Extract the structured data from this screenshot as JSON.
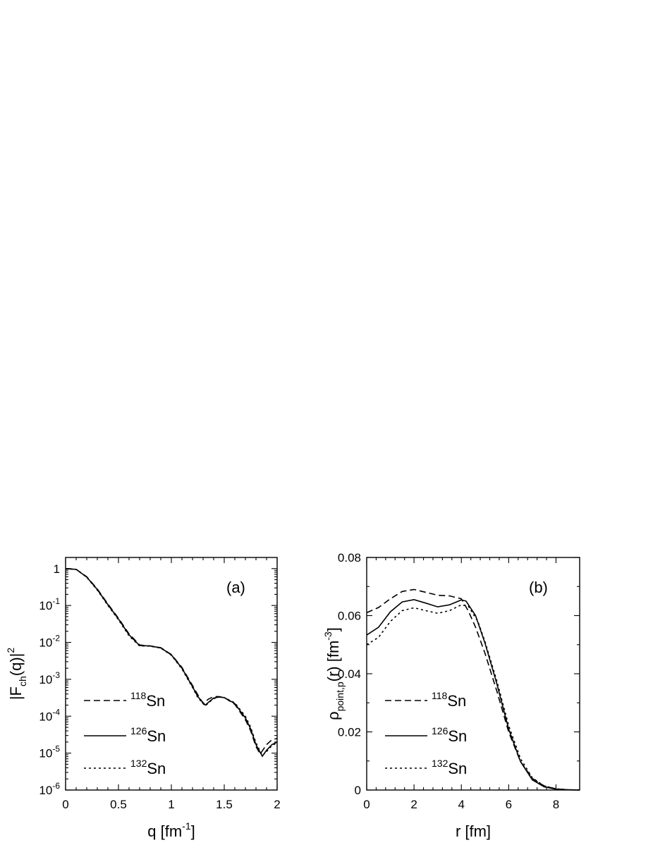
{
  "chart_data": [
    {
      "type": "line",
      "panel_label": "(a)",
      "xlabel": "q [fm",
      "xlabel_sup": "-1",
      "xlabel_end": "]",
      "ylabel": "|F",
      "ylabel_sub": "ch",
      "ylabel_mid": "(q)|",
      "ylabel_sup": "2",
      "xlim": [
        0,
        2
      ],
      "ylim": [
        1e-06,
        2
      ],
      "yscale": "log",
      "xticks": [
        0,
        0.5,
        1,
        1.5,
        2
      ],
      "xtick_labels": [
        "0",
        "0.5",
        "1",
        "1.5",
        "2"
      ],
      "yticks": [
        1e-06,
        1e-05,
        0.0001,
        0.001,
        0.01,
        0.1,
        1
      ],
      "ytick_labels": [
        {
          "base": "10",
          "exp": "-6"
        },
        {
          "base": "10",
          "exp": "-5"
        },
        {
          "base": "10",
          "exp": "-4"
        },
        {
          "base": "10",
          "exp": "-3"
        },
        {
          "base": "10",
          "exp": "-2"
        },
        {
          "base": "10",
          "exp": "-1"
        },
        {
          "base": "1",
          "exp": ""
        }
      ],
      "legend": "bottom-left",
      "grid": false,
      "series": [
        {
          "name": "Sn",
          "mass": "118",
          "style": "dashed",
          "x": [
            0,
            0.1,
            0.2,
            0.3,
            0.4,
            0.5,
            0.6,
            0.7,
            0.75,
            0.8,
            0.9,
            1.0,
            1.1,
            1.2,
            1.25,
            1.3,
            1.35,
            1.4,
            1.45,
            1.5,
            1.6,
            1.7,
            1.75,
            1.8,
            1.84,
            1.9,
            1.95,
            2.0
          ],
          "y": [
            1,
            0.95,
            0.6,
            0.28,
            0.11,
            0.045,
            0.017,
            0.0085,
            0.0082,
            0.008,
            0.0072,
            0.0047,
            0.0021,
            0.00068,
            0.00038,
            0.00022,
            0.00029,
            0.00034,
            0.00034,
            0.00032,
            0.00021,
            8e-05,
            4e-05,
            1.5e-05,
            9.5e-06,
            1.7e-05,
            2.3e-05,
            2.5e-05
          ]
        },
        {
          "name": "Sn",
          "mass": "126",
          "style": "solid",
          "x": [
            0,
            0.1,
            0.2,
            0.3,
            0.4,
            0.5,
            0.6,
            0.7,
            0.75,
            0.8,
            0.9,
            1.0,
            1.1,
            1.2,
            1.25,
            1.32,
            1.36,
            1.4,
            1.45,
            1.5,
            1.6,
            1.7,
            1.75,
            1.8,
            1.86,
            1.9,
            1.95,
            2.0
          ],
          "y": [
            1,
            0.95,
            0.59,
            0.27,
            0.105,
            0.043,
            0.016,
            0.0082,
            0.0081,
            0.008,
            0.0071,
            0.0046,
            0.002,
            0.00063,
            0.00034,
            0.0002,
            0.00025,
            0.00031,
            0.00033,
            0.00032,
            0.00022,
            9e-05,
            4.5e-05,
            1.7e-05,
            8.2e-06,
            1.2e-05,
            1.7e-05,
            2e-05
          ]
        },
        {
          "name": "Sn",
          "mass": "132",
          "style": "dotted",
          "x": [
            0,
            0.1,
            0.2,
            0.3,
            0.4,
            0.5,
            0.6,
            0.7,
            0.75,
            0.8,
            0.9,
            1.0,
            1.1,
            1.2,
            1.25,
            1.32,
            1.36,
            1.4,
            1.45,
            1.5,
            1.6,
            1.7,
            1.75,
            1.8,
            1.86,
            1.9,
            1.95,
            2.0
          ],
          "y": [
            1,
            0.95,
            0.58,
            0.26,
            0.1,
            0.041,
            0.015,
            0.008,
            0.008,
            0.0079,
            0.007,
            0.0045,
            0.0019,
            0.0006,
            0.00032,
            0.00019,
            0.00024,
            0.0003,
            0.00033,
            0.00032,
            0.00023,
            0.0001,
            5e-05,
            1.9e-05,
            8.5e-06,
            1.1e-05,
            1.6e-05,
            1.9e-05
          ]
        }
      ]
    },
    {
      "type": "line",
      "panel_label": "(b)",
      "xlabel": "r [fm]",
      "ylabel": "ρ",
      "ylabel_sub": "point,p",
      "ylabel_mid": "(r) [fm",
      "ylabel_sup": "-3",
      "ylabel_end": "]",
      "xlim": [
        0,
        9
      ],
      "ylim": [
        0,
        0.08
      ],
      "yscale": "linear",
      "xticks": [
        0,
        2,
        4,
        6,
        8
      ],
      "xtick_labels": [
        "0",
        "2",
        "4",
        "6",
        "8"
      ],
      "yticks": [
        0,
        0.02,
        0.04,
        0.06,
        0.08
      ],
      "ytick_labels": [
        "0",
        "0.02",
        "0.04",
        "0.06",
        "0.08"
      ],
      "legend": "bottom-left",
      "grid": false,
      "series": [
        {
          "name": "Sn",
          "mass": "118",
          "style": "dashed",
          "x": [
            0,
            0.5,
            1,
            1.5,
            2,
            2.5,
            3,
            3.5,
            4,
            4.3,
            4.6,
            5,
            5.5,
            6,
            6.5,
            7,
            7.5,
            8,
            8.5,
            9
          ],
          "y": [
            0.061,
            0.0628,
            0.0658,
            0.0683,
            0.069,
            0.068,
            0.067,
            0.0668,
            0.0658,
            0.0615,
            0.056,
            0.047,
            0.034,
            0.02,
            0.0098,
            0.004,
            0.0014,
            0.0004,
            0.0001,
            0.0
          ]
        },
        {
          "name": "Sn",
          "mass": "126",
          "style": "solid",
          "x": [
            0,
            0.5,
            1,
            1.5,
            2,
            2.5,
            3,
            3.5,
            4,
            4.2,
            4.6,
            5,
            5.5,
            6,
            6.5,
            7,
            7.5,
            8,
            8.5,
            9
          ],
          "y": [
            0.0533,
            0.056,
            0.0613,
            0.0647,
            0.0655,
            0.0643,
            0.063,
            0.0637,
            0.0654,
            0.065,
            0.06,
            0.0505,
            0.0365,
            0.021,
            0.0098,
            0.0035,
            0.0011,
            0.0003,
            0.0001,
            0.0
          ]
        },
        {
          "name": "Sn",
          "mass": "132",
          "style": "dotted",
          "x": [
            0,
            0.5,
            1,
            1.5,
            2,
            2.5,
            3,
            3.5,
            4,
            4.3,
            4.7,
            5,
            5.5,
            6,
            6.5,
            7,
            7.5,
            8,
            8.5,
            9
          ],
          "y": [
            0.05,
            0.0525,
            0.058,
            0.0617,
            0.0627,
            0.0617,
            0.0608,
            0.0617,
            0.0637,
            0.0632,
            0.058,
            0.051,
            0.0375,
            0.0222,
            0.0108,
            0.0042,
            0.0014,
            0.0004,
            0.0001,
            0.0
          ]
        }
      ]
    }
  ]
}
